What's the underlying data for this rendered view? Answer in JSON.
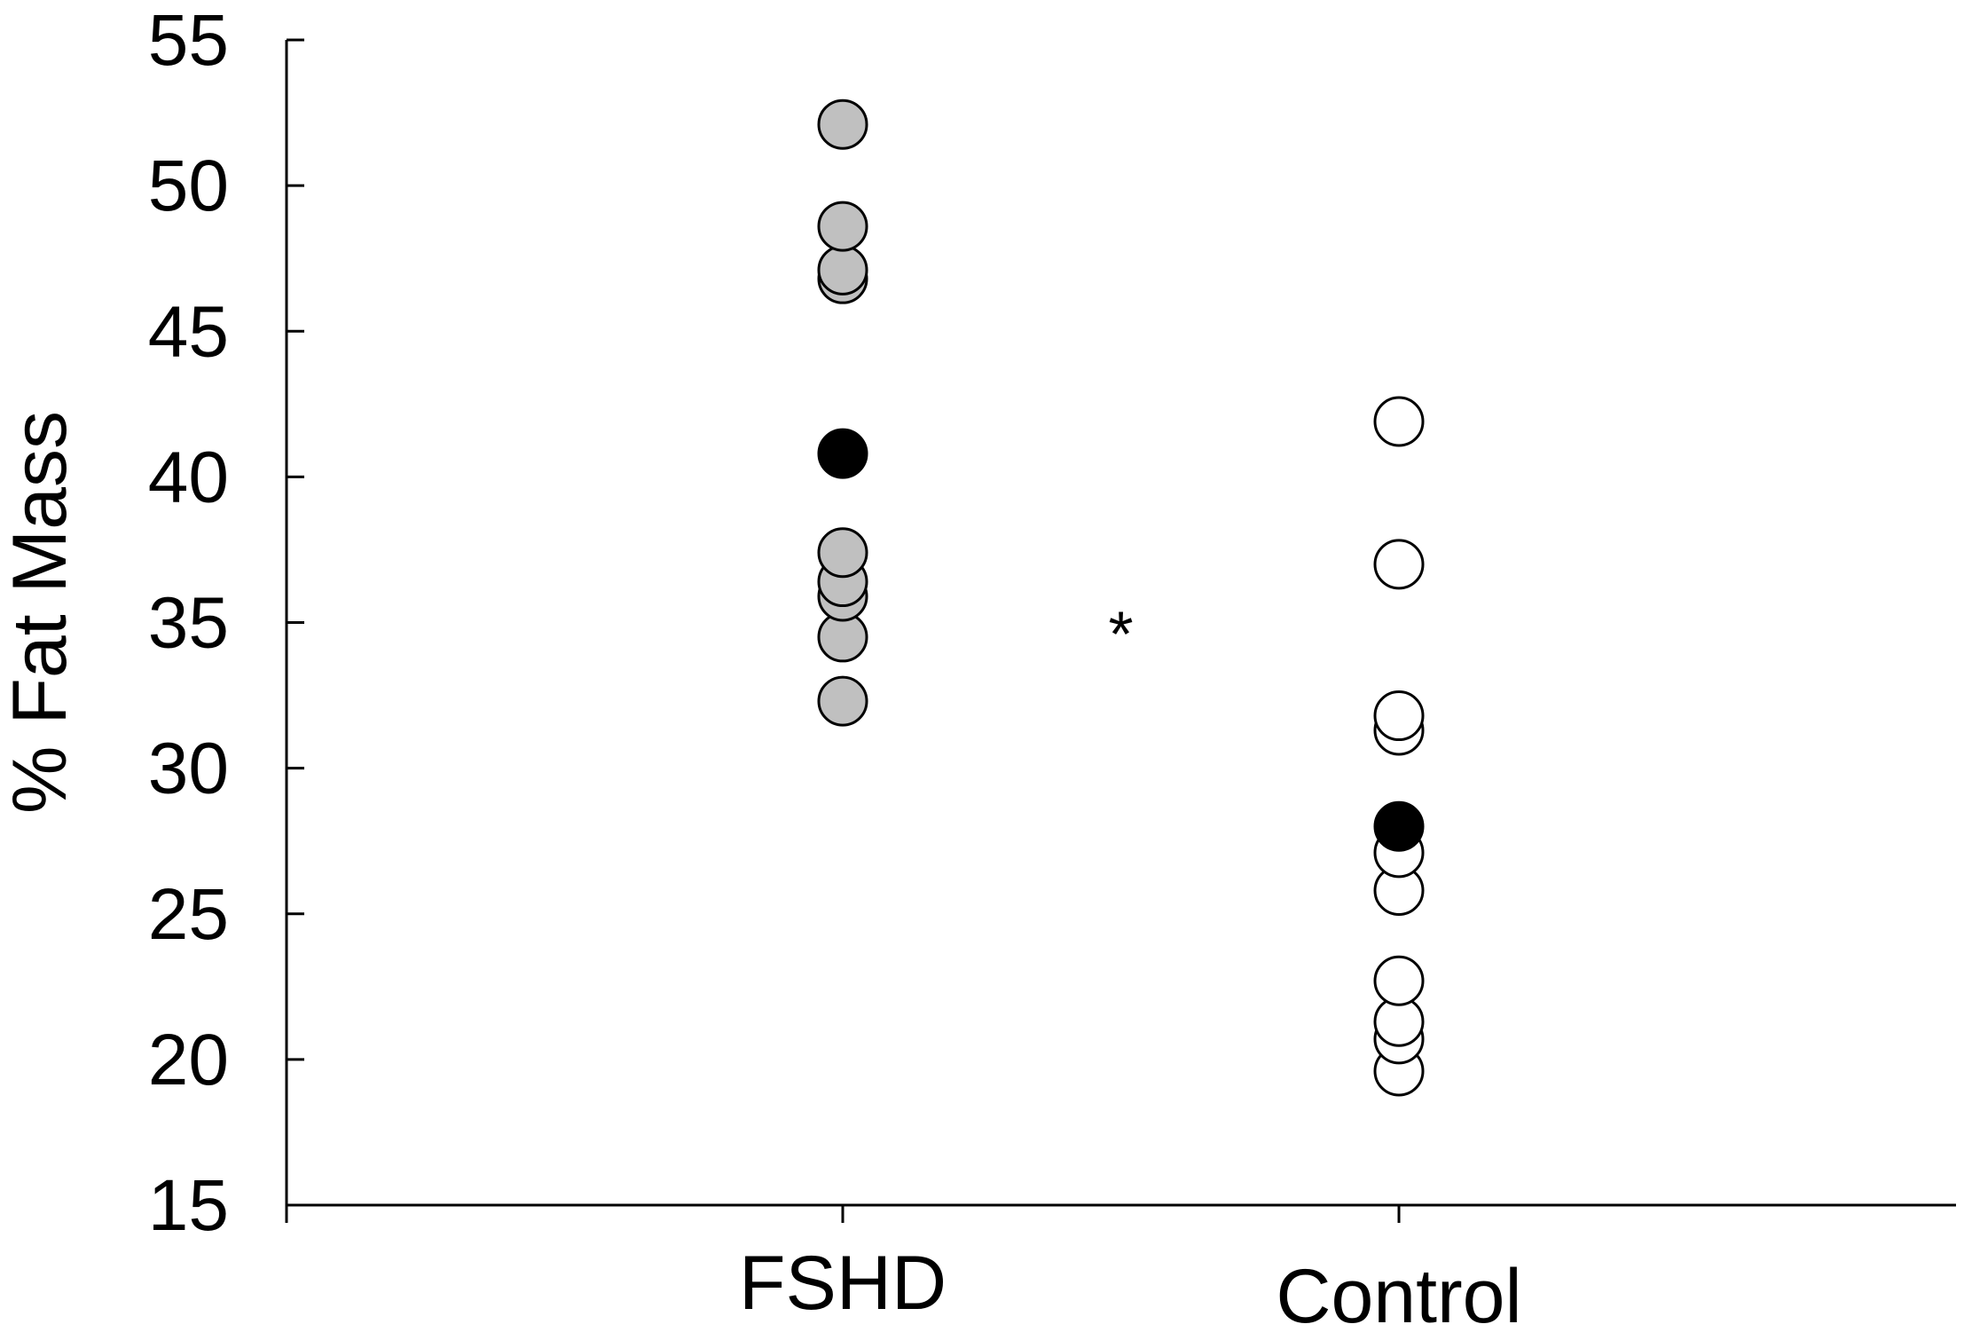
{
  "chart_data": {
    "type": "scatter",
    "title": "",
    "xlabel": "",
    "ylabel": "% Fat Mass",
    "ylim": [
      15,
      55
    ],
    "yticks": [
      "15",
      "20",
      "25",
      "30",
      "35",
      "40",
      "45",
      "50",
      "55"
    ],
    "categories": [
      "FSHD",
      "Control"
    ],
    "grid": false,
    "legend": "none",
    "series": [
      {
        "category": "FSHD",
        "fill": "#c0c0c0",
        "values": [
          52.1,
          48.6,
          47.1,
          46.8,
          37.4,
          36.4,
          35.9,
          34.5,
          32.3
        ]
      },
      {
        "category": "FSHD",
        "fill": "#000000",
        "values": [
          40.8
        ]
      },
      {
        "category": "Control",
        "fill": "#ffffff",
        "values": [
          41.9,
          37.0,
          31.8,
          31.3,
          27.1,
          25.8,
          22.7,
          21.3,
          20.7,
          19.6
        ]
      },
      {
        "category": "Control",
        "fill": "#000000",
        "values": [
          28.0
        ]
      }
    ],
    "annotations": [
      {
        "text": "*",
        "between": [
          "FSHD",
          "Control"
        ],
        "y": 35
      }
    ]
  }
}
